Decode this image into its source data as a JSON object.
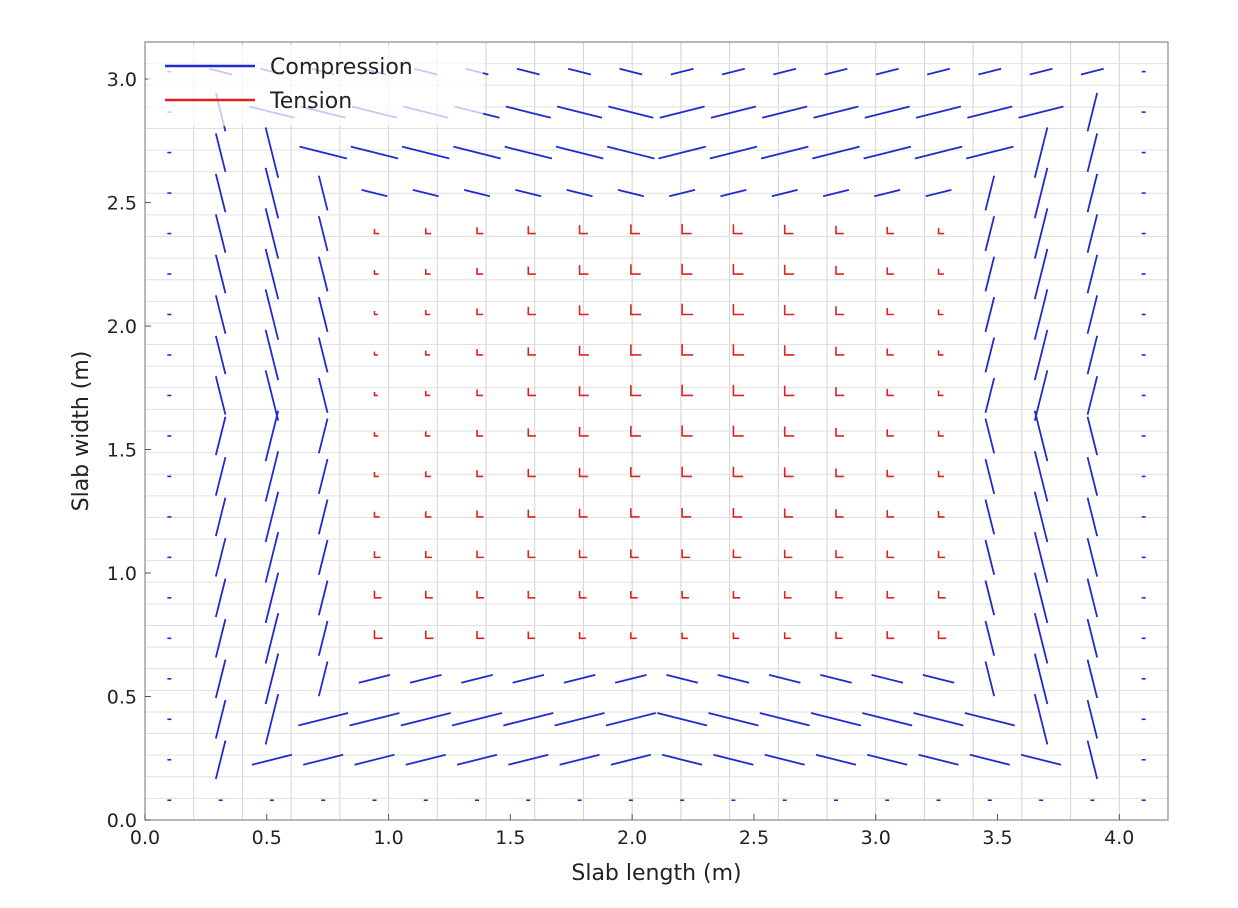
{
  "chart_data": {
    "type": "scatter",
    "xlabel": "Slab length (m)",
    "ylabel": "Slab width (m)",
    "xlim": [
      0.0,
      4.2
    ],
    "ylim": [
      0.0,
      3.15
    ],
    "x_ticks": [
      "0.0",
      "0.5",
      "1.0",
      "1.5",
      "2.0",
      "2.5",
      "3.0",
      "3.5",
      "4.0"
    ],
    "y_ticks": [
      "0.0",
      "0.5",
      "1.0",
      "1.5",
      "2.0",
      "2.5",
      "3.0"
    ],
    "grid": true,
    "legend_position": "top-left",
    "series": [
      {
        "name": "Compression",
        "color": "#1f2bd1"
      },
      {
        "name": "Tension",
        "color": "#e02020"
      }
    ],
    "field_description": "Principal stress directions on a 20 x 19 grid; compression near slab edges, tension in interior"
  }
}
